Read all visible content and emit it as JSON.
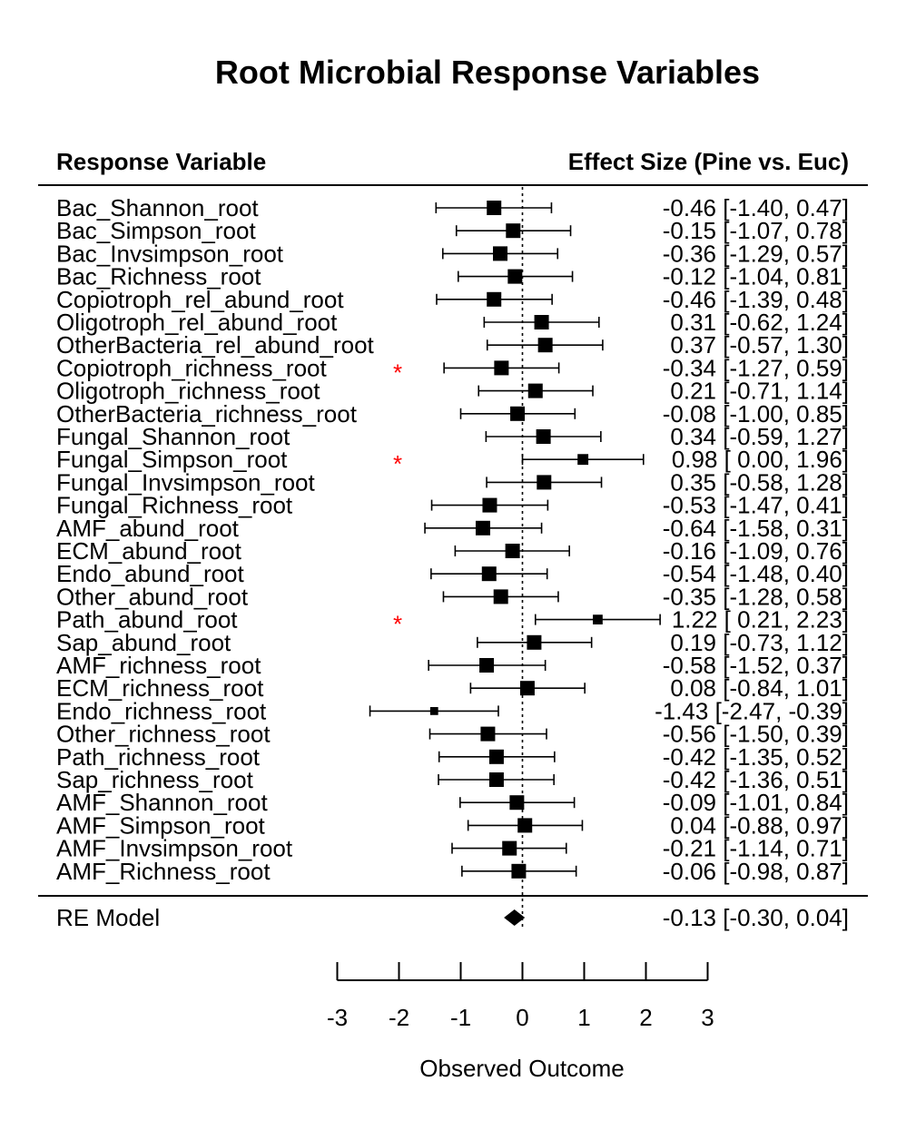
{
  "chart_data": {
    "type": "forest",
    "title": "Root Microbial Response Variables",
    "left_header": "Response Variable",
    "right_header": "Effect Size (Pine vs. Euc)",
    "xlabel": "Observed Outcome",
    "xlim": [
      -3,
      3
    ],
    "xticks": [
      "-3",
      "-2",
      "-1",
      "0",
      "1",
      "2",
      "3"
    ],
    "reference_line": 0,
    "significance_marker": "*",
    "significance_color": "#ff0000",
    "rows": [
      {
        "label": "Bac_Shannon_root",
        "estimate": -0.46,
        "lower": -1.4,
        "upper": 0.47,
        "text": "-0.46 [-1.40,  0.47]",
        "weight": 1.0,
        "star": false
      },
      {
        "label": "Bac_Simpson_root",
        "estimate": -0.15,
        "lower": -1.07,
        "upper": 0.78,
        "text": "-0.15 [-1.07,  0.78]",
        "weight": 1.0,
        "star": false
      },
      {
        "label": "Bac_Invsimpson_root",
        "estimate": -0.36,
        "lower": -1.29,
        "upper": 0.57,
        "text": "-0.36 [-1.29,  0.57]",
        "weight": 1.0,
        "star": false
      },
      {
        "label": "Bac_Richness_root",
        "estimate": -0.12,
        "lower": -1.04,
        "upper": 0.81,
        "text": "-0.12 [-1.04,  0.81]",
        "weight": 1.0,
        "star": false
      },
      {
        "label": "Copiotroph_rel_abund_root",
        "estimate": -0.46,
        "lower": -1.39,
        "upper": 0.48,
        "text": "-0.46 [-1.39,  0.48]",
        "weight": 1.0,
        "star": false
      },
      {
        "label": "Oligotroph_rel_abund_root",
        "estimate": 0.31,
        "lower": -0.62,
        "upper": 1.24,
        "text": "0.31 [-0.62,  1.24]",
        "weight": 1.0,
        "star": false
      },
      {
        "label": "OtherBacteria_rel_abund_root",
        "estimate": 0.37,
        "lower": -0.57,
        "upper": 1.3,
        "text": "0.37 [-0.57,  1.30]",
        "weight": 1.0,
        "star": false
      },
      {
        "label": "Copiotroph_richness_root",
        "estimate": -0.34,
        "lower": -1.27,
        "upper": 0.59,
        "text": "-0.34 [-1.27,  0.59]",
        "weight": 1.0,
        "star": true
      },
      {
        "label": "Oligotroph_richness_root",
        "estimate": 0.21,
        "lower": -0.71,
        "upper": 1.14,
        "text": "0.21 [-0.71,  1.14]",
        "weight": 1.0,
        "star": false
      },
      {
        "label": "OtherBacteria_richness_root",
        "estimate": -0.08,
        "lower": -1.0,
        "upper": 0.85,
        "text": "-0.08 [-1.00,  0.85]",
        "weight": 1.0,
        "star": false
      },
      {
        "label": "Fungal_Shannon_root",
        "estimate": 0.34,
        "lower": -0.59,
        "upper": 1.27,
        "text": "0.34 [-0.59,  1.27]",
        "weight": 1.0,
        "star": false
      },
      {
        "label": "Fungal_Simpson_root",
        "estimate": 0.98,
        "lower": 0.0,
        "upper": 1.96,
        "text": "0.98 [ 0.00,  1.96]",
        "weight": 0.55,
        "star": true
      },
      {
        "label": "Fungal_Invsimpson_root",
        "estimate": 0.35,
        "lower": -0.58,
        "upper": 1.28,
        "text": "0.35 [-0.58,  1.28]",
        "weight": 1.0,
        "star": false
      },
      {
        "label": "Fungal_Richness_root",
        "estimate": -0.53,
        "lower": -1.47,
        "upper": 0.41,
        "text": "-0.53 [-1.47,  0.41]",
        "weight": 1.0,
        "star": false
      },
      {
        "label": "AMF_abund_root",
        "estimate": -0.64,
        "lower": -1.58,
        "upper": 0.31,
        "text": "-0.64 [-1.58,  0.31]",
        "weight": 1.0,
        "star": false
      },
      {
        "label": "ECM_abund_root",
        "estimate": -0.16,
        "lower": -1.09,
        "upper": 0.76,
        "text": "-0.16 [-1.09,  0.76]",
        "weight": 1.0,
        "star": false
      },
      {
        "label": "Endo_abund_root",
        "estimate": -0.54,
        "lower": -1.48,
        "upper": 0.4,
        "text": "-0.54 [-1.48,  0.40]",
        "weight": 1.0,
        "star": false
      },
      {
        "label": "Other_abund_root",
        "estimate": -0.35,
        "lower": -1.28,
        "upper": 0.58,
        "text": "-0.35 [-1.28,  0.58]",
        "weight": 1.0,
        "star": false
      },
      {
        "label": "Path_abund_root",
        "estimate": 1.22,
        "lower": 0.21,
        "upper": 2.23,
        "text": "1.22 [ 0.21,  2.23]",
        "weight": 0.45,
        "star": true
      },
      {
        "label": "Sap_abund_root",
        "estimate": 0.19,
        "lower": -0.73,
        "upper": 1.12,
        "text": "0.19 [-0.73,  1.12]",
        "weight": 1.0,
        "star": false
      },
      {
        "label": "AMF_richness_root",
        "estimate": -0.58,
        "lower": -1.52,
        "upper": 0.37,
        "text": "-0.58 [-1.52,  0.37]",
        "weight": 1.0,
        "star": false
      },
      {
        "label": "ECM_richness_root",
        "estimate": 0.08,
        "lower": -0.84,
        "upper": 1.01,
        "text": "0.08 [-0.84,  1.01]",
        "weight": 1.0,
        "star": false
      },
      {
        "label": "Endo_richness_root",
        "estimate": -1.43,
        "lower": -2.47,
        "upper": -0.39,
        "text": "-1.43 [-2.47, -0.39]",
        "weight": 0.3,
        "star": false
      },
      {
        "label": "Other_richness_root",
        "estimate": -0.56,
        "lower": -1.5,
        "upper": 0.39,
        "text": "-0.56 [-1.50,  0.39]",
        "weight": 1.0,
        "star": false
      },
      {
        "label": "Path_richness_root",
        "estimate": -0.42,
        "lower": -1.35,
        "upper": 0.52,
        "text": "-0.42 [-1.35,  0.52]",
        "weight": 1.0,
        "star": false
      },
      {
        "label": "Sap_richness_root",
        "estimate": -0.42,
        "lower": -1.36,
        "upper": 0.51,
        "text": "-0.42 [-1.36,  0.51]",
        "weight": 1.0,
        "star": false
      },
      {
        "label": "AMF_Shannon_root",
        "estimate": -0.09,
        "lower": -1.01,
        "upper": 0.84,
        "text": "-0.09 [-1.01,  0.84]",
        "weight": 1.0,
        "star": false
      },
      {
        "label": "AMF_Simpson_root",
        "estimate": 0.04,
        "lower": -0.88,
        "upper": 0.97,
        "text": "0.04 [-0.88,  0.97]",
        "weight": 1.0,
        "star": false
      },
      {
        "label": "AMF_Invsimpson_root",
        "estimate": -0.21,
        "lower": -1.14,
        "upper": 0.71,
        "text": "-0.21 [-1.14,  0.71]",
        "weight": 1.0,
        "star": false
      },
      {
        "label": "AMF_Richness_root",
        "estimate": -0.06,
        "lower": -0.98,
        "upper": 0.87,
        "text": "-0.06 [-0.98,  0.87]",
        "weight": 1.0,
        "star": false
      }
    ],
    "summary": {
      "label": "RE Model",
      "estimate": -0.13,
      "lower": -0.3,
      "upper": 0.04,
      "text": "-0.13 [-0.30,  0.04]"
    }
  }
}
